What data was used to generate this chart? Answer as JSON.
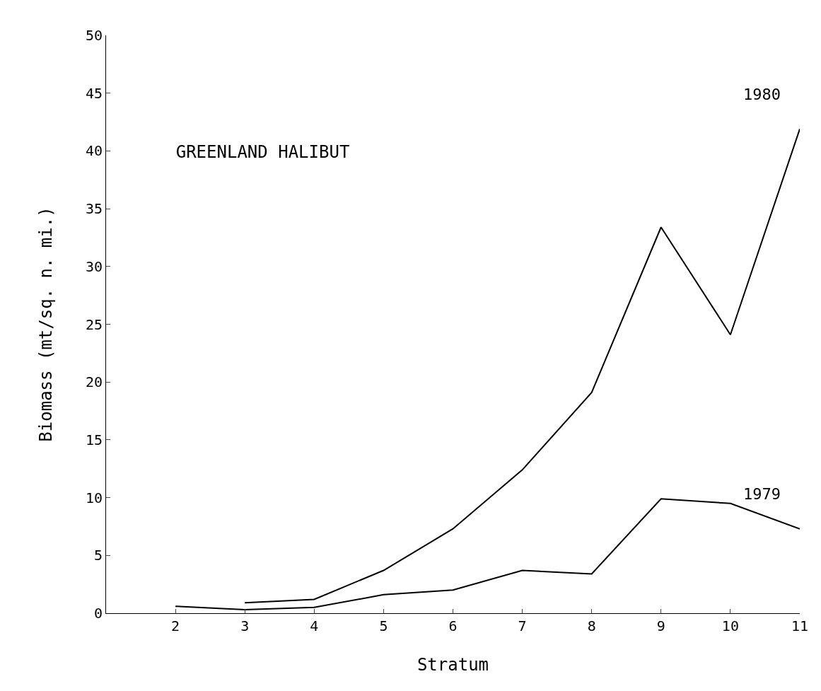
{
  "chart_data": {
    "type": "line",
    "title": "GREENLAND HALIBUT",
    "xlabel": "Stratum",
    "ylabel": "Biomass (mt/sq. n. mi.)",
    "series": [
      {
        "name": "1979",
        "color": "#000000",
        "x": [
          2,
          3,
          4,
          5,
          6,
          7,
          8,
          9,
          10,
          11
        ],
        "values": [
          0.6,
          0.3,
          0.5,
          1.6,
          2.0,
          3.7,
          3.4,
          9.9,
          9.5,
          7.3
        ]
      },
      {
        "name": "1980",
        "color": "#000000",
        "x": [
          3,
          4,
          5,
          6,
          7,
          8,
          9,
          10,
          11
        ],
        "values": [
          0.9,
          1.2,
          3.7,
          7.3,
          12.4,
          19.1,
          33.4,
          24.1,
          41.9
        ]
      }
    ],
    "xlim": [
      1,
      11
    ],
    "xticks": [
      2,
      3,
      4,
      5,
      6,
      7,
      8,
      9,
      10,
      11
    ],
    "ylim": [
      0,
      50
    ],
    "yticks": [
      0,
      5,
      10,
      15,
      20,
      25,
      30,
      35,
      40,
      45,
      50
    ],
    "grid": false,
    "legend": false,
    "marker": "none",
    "line_style": "solid"
  }
}
